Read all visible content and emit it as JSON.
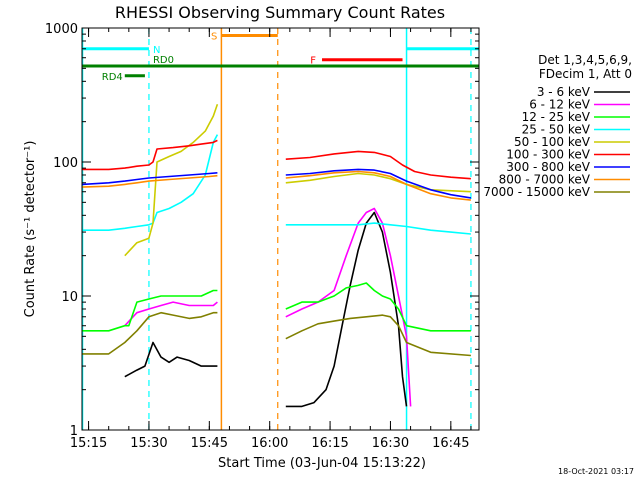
{
  "chart_data": {
    "type": "line",
    "title": "RHESSI Observing Summary Count Rates",
    "xlabel": "Start Time (03-Jun-04 15:13:22)",
    "ylabel": "Count Rate (s⁻¹ detector⁻¹)",
    "x_axis": {
      "unit": "time",
      "min": "15:13:22",
      "max": "16:52:00",
      "tick_labels": [
        "15:15",
        "15:30",
        "15:45",
        "16:00",
        "16:15",
        "16:30",
        "16:45"
      ]
    },
    "y_axis": {
      "scale": "log",
      "min": 1,
      "max": 1000,
      "tick_labels": [
        "1",
        "10",
        "100",
        "1000"
      ]
    },
    "footer_date": "18-Oct-2021 03:17",
    "legend_header": [
      "Det 1,3,4,5,6,9,",
      "FDecim 1, Att 0"
    ],
    "legend_position": "right",
    "series": [
      {
        "name": "3 - 6 keV",
        "color": "#000000",
        "points": [
          [
            "15:24",
            2.5
          ],
          [
            "15:27",
            2.8
          ],
          [
            "15:29",
            3
          ],
          [
            "15:31",
            4.5
          ],
          [
            "15:33",
            3.5
          ],
          [
            "15:35",
            3.2
          ],
          [
            "15:37",
            3.5
          ],
          [
            "15:40",
            3.3
          ],
          [
            "15:43",
            3.0
          ],
          [
            "15:46",
            3.0
          ],
          [
            "15:47",
            3.0
          ],
          [
            "16:04",
            1.5
          ],
          [
            "16:08",
            1.5
          ],
          [
            "16:11",
            1.6
          ],
          [
            "16:14",
            2.0
          ],
          [
            "16:16",
            3.0
          ],
          [
            "16:18",
            6.0
          ],
          [
            "16:20",
            12.0
          ],
          [
            "16:22",
            22.0
          ],
          [
            "16:24",
            35.0
          ],
          [
            "16:26",
            42.0
          ],
          [
            "16:28",
            30.0
          ],
          [
            "16:30",
            15.0
          ],
          [
            "16:32",
            6.0
          ],
          [
            "16:33",
            2.5
          ],
          [
            "16:34",
            1.5
          ]
        ]
      },
      {
        "name": "6 - 12 keV",
        "color": "#ff00ff",
        "points": [
          [
            "15:24",
            6.0
          ],
          [
            "15:27",
            7.5
          ],
          [
            "15:30",
            8.0
          ],
          [
            "15:33",
            8.5
          ],
          [
            "15:36",
            9.0
          ],
          [
            "15:40",
            8.5
          ],
          [
            "15:43",
            8.5
          ],
          [
            "15:46",
            8.5
          ],
          [
            "15:47",
            9.0
          ],
          [
            "16:04",
            7.0
          ],
          [
            "16:08",
            8.0
          ],
          [
            "16:12",
            9.0
          ],
          [
            "16:16",
            11.0
          ],
          [
            "16:19",
            20.0
          ],
          [
            "16:22",
            35.0
          ],
          [
            "16:24",
            42.0
          ],
          [
            "16:26",
            45.0
          ],
          [
            "16:28",
            35.0
          ],
          [
            "16:30",
            20.0
          ],
          [
            "16:32",
            10.0
          ],
          [
            "16:34",
            5.0
          ],
          [
            "16:35",
            1.5
          ]
        ]
      },
      {
        "name": "12 - 25 keV",
        "color": "#00ff00",
        "points": [
          [
            "15:13:22",
            5.5
          ],
          [
            "15:20",
            5.5
          ],
          [
            "15:24",
            6.0
          ],
          [
            "15:25",
            6.0
          ],
          [
            "15:27",
            9.0
          ],
          [
            "15:30",
            9.5
          ],
          [
            "15:33",
            10.0
          ],
          [
            "15:36",
            10.0
          ],
          [
            "15:40",
            10.0
          ],
          [
            "15:43",
            10.0
          ],
          [
            "15:46",
            11.0
          ],
          [
            "15:47",
            11.0
          ],
          [
            "16:04",
            8.0
          ],
          [
            "16:08",
            9.0
          ],
          [
            "16:12",
            9.0
          ],
          [
            "16:16",
            10.0
          ],
          [
            "16:19",
            11.5
          ],
          [
            "16:22",
            12.0
          ],
          [
            "16:24",
            12.5
          ],
          [
            "16:26",
            11.0
          ],
          [
            "16:28",
            10.0
          ],
          [
            "16:30",
            9.5
          ],
          [
            "16:32",
            8.0
          ],
          [
            "16:34",
            6.0
          ],
          [
            "16:40",
            5.5
          ],
          [
            "16:50",
            5.5
          ]
        ]
      },
      {
        "name": "25 - 50 keV",
        "color": "#00ffff",
        "points": [
          [
            "15:13:22",
            31.0
          ],
          [
            "15:20",
            31.0
          ],
          [
            "15:24",
            32.0
          ],
          [
            "15:27",
            33.0
          ],
          [
            "15:30",
            34.0
          ],
          [
            "15:31",
            35.0
          ],
          [
            "15:32",
            42.0
          ],
          [
            "15:35",
            45.0
          ],
          [
            "15:38",
            50.0
          ],
          [
            "15:41",
            58.0
          ],
          [
            "15:44",
            80.0
          ],
          [
            "15:46",
            140.0
          ],
          [
            "15:47",
            160.0
          ],
          [
            "16:04",
            34.0
          ],
          [
            "16:10",
            34.0
          ],
          [
            "16:16",
            34.0
          ],
          [
            "16:22",
            34.0
          ],
          [
            "16:26",
            35.0
          ],
          [
            "16:30",
            34.0
          ],
          [
            "16:34",
            33.0
          ],
          [
            "16:40",
            31.0
          ],
          [
            "16:45",
            30.0
          ],
          [
            "16:50",
            29.0
          ]
        ]
      },
      {
        "name": "50 - 100 keV",
        "color": "#cccc00",
        "points": [
          [
            "15:24",
            20.0
          ],
          [
            "15:27",
            25.0
          ],
          [
            "15:30",
            27.0
          ],
          [
            "15:31",
            35.0
          ],
          [
            "15:32",
            100.0
          ],
          [
            "15:35",
            110.0
          ],
          [
            "15:38",
            120.0
          ],
          [
            "15:41",
            140.0
          ],
          [
            "15:44",
            170.0
          ],
          [
            "15:46",
            220.0
          ],
          [
            "15:47",
            270.0
          ],
          [
            "16:04",
            70.0
          ],
          [
            "16:10",
            73.0
          ],
          [
            "16:16",
            78.0
          ],
          [
            "16:22",
            82.0
          ],
          [
            "16:26",
            80.0
          ],
          [
            "16:30",
            75.0
          ],
          [
            "16:34",
            68.0
          ],
          [
            "16:40",
            62.0
          ],
          [
            "16:50",
            60.0
          ]
        ]
      },
      {
        "name": "100 - 300 keV",
        "color": "#ff0000",
        "points": [
          [
            "15:13:22",
            88.0
          ],
          [
            "15:20",
            88.0
          ],
          [
            "15:24",
            90.0
          ],
          [
            "15:27",
            93.0
          ],
          [
            "15:30",
            95.0
          ],
          [
            "15:31",
            100.0
          ],
          [
            "15:32",
            125.0
          ],
          [
            "15:36",
            128.0
          ],
          [
            "15:40",
            132.0
          ],
          [
            "15:43",
            136.0
          ],
          [
            "15:46",
            140.0
          ],
          [
            "15:47",
            145.0
          ],
          [
            "16:04",
            105.0
          ],
          [
            "16:10",
            108.0
          ],
          [
            "16:16",
            115.0
          ],
          [
            "16:22",
            120.0
          ],
          [
            "16:26",
            118.0
          ],
          [
            "16:30",
            110.0
          ],
          [
            "16:33",
            95.0
          ],
          [
            "16:36",
            85.0
          ],
          [
            "16:40",
            80.0
          ],
          [
            "16:45",
            77.0
          ],
          [
            "16:50",
            75.0
          ]
        ]
      },
      {
        "name": "300 - 800 keV",
        "color": "#0000ff",
        "points": [
          [
            "15:13:22",
            68.0
          ],
          [
            "15:20",
            70.0
          ],
          [
            "15:24",
            72.0
          ],
          [
            "15:27",
            74.0
          ],
          [
            "15:30",
            76.0
          ],
          [
            "15:35",
            78.0
          ],
          [
            "15:40",
            80.0
          ],
          [
            "15:45",
            82.0
          ],
          [
            "15:47",
            83.0
          ],
          [
            "16:04",
            80.0
          ],
          [
            "16:10",
            82.0
          ],
          [
            "16:16",
            86.0
          ],
          [
            "16:22",
            88.0
          ],
          [
            "16:26",
            87.0
          ],
          [
            "16:30",
            82.0
          ],
          [
            "16:34",
            72.0
          ],
          [
            "16:40",
            62.0
          ],
          [
            "16:45",
            57.0
          ],
          [
            "16:50",
            54.0
          ]
        ]
      },
      {
        "name": "800 - 7000 keV",
        "color": "#ff8c00",
        "points": [
          [
            "15:13:22",
            65.0
          ],
          [
            "15:20",
            66.0
          ],
          [
            "15:24",
            68.0
          ],
          [
            "15:27",
            70.0
          ],
          [
            "15:30",
            72.0
          ],
          [
            "15:35",
            74.0
          ],
          [
            "15:40",
            76.0
          ],
          [
            "15:45",
            78.0
          ],
          [
            "15:47",
            79.0
          ],
          [
            "16:04",
            76.0
          ],
          [
            "16:10",
            79.0
          ],
          [
            "16:16",
            83.0
          ],
          [
            "16:22",
            85.0
          ],
          [
            "16:26",
            83.0
          ],
          [
            "16:30",
            78.0
          ],
          [
            "16:34",
            68.0
          ],
          [
            "16:40",
            58.0
          ],
          [
            "16:45",
            54.0
          ],
          [
            "16:50",
            52.0
          ]
        ]
      },
      {
        "name": "7000 - 15000 keV",
        "color": "#808000",
        "points": [
          [
            "15:13:22",
            3.7
          ],
          [
            "15:20",
            3.7
          ],
          [
            "15:24",
            4.5
          ],
          [
            "15:27",
            5.5
          ],
          [
            "15:30",
            7.0
          ],
          [
            "15:33",
            7.5
          ],
          [
            "15:36",
            7.2
          ],
          [
            "15:40",
            6.8
          ],
          [
            "15:43",
            7.0
          ],
          [
            "15:46",
            7.5
          ],
          [
            "15:47",
            7.5
          ],
          [
            "16:04",
            4.8
          ],
          [
            "16:08",
            5.5
          ],
          [
            "16:12",
            6.2
          ],
          [
            "16:16",
            6.5
          ],
          [
            "16:20",
            6.8
          ],
          [
            "16:24",
            7.0
          ],
          [
            "16:28",
            7.2
          ],
          [
            "16:30",
            7.0
          ],
          [
            "16:32",
            6.0
          ],
          [
            "16:34",
            4.5
          ],
          [
            "16:40",
            3.8
          ],
          [
            "16:50",
            3.6
          ]
        ]
      }
    ],
    "annotations": [
      {
        "label": "N",
        "type": "night",
        "color": "#00ffff",
        "bars": [
          [
            "15:13:22",
            "15:30"
          ],
          [
            "16:34",
            "16:52:00"
          ]
        ],
        "bar_level": 700,
        "dashed_lines": [
          "15:30",
          "16:50"
        ],
        "solid_lines": [
          "15:13:30",
          "16:34"
        ]
      },
      {
        "label": "S",
        "type": "saa",
        "color": "#ff8c00",
        "bars": [
          [
            "15:48",
            "16:02"
          ]
        ],
        "bar_level": 880,
        "dashed_lines": [
          "16:02"
        ],
        "solid_lines": [
          "15:48"
        ]
      },
      {
        "label": "F",
        "type": "flare",
        "color": "#ff0000",
        "bars": [
          [
            "16:13",
            "16:33"
          ]
        ],
        "bar_level": 580
      },
      {
        "label": "RD0",
        "type": "decimation",
        "color": "#008000",
        "bars": [
          [
            "15:13:22",
            "16:52:00"
          ]
        ],
        "bar_level": 520
      },
      {
        "label": "RD4",
        "type": "decimation",
        "color": "#008000",
        "bars": [
          [
            "15:24",
            "15:29"
          ]
        ],
        "bar_level": 440
      }
    ]
  }
}
